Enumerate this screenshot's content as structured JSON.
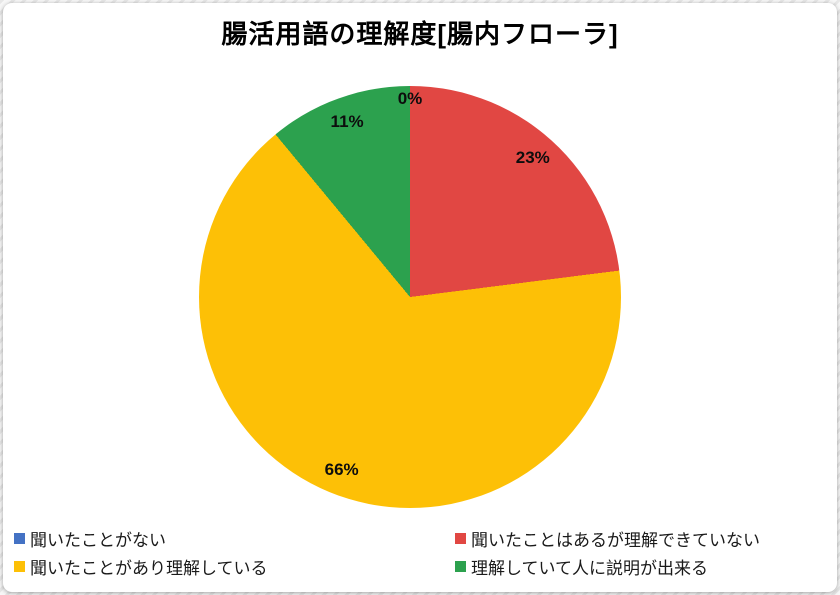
{
  "chart_data": {
    "type": "pie",
    "title": "腸活用語の理解度[腸内フローラ]",
    "labels": [
      "聞いたことがない",
      "聞いたことはあるが理解できていない",
      "聞いたことがあり理解している",
      "理解していて人に説明が出来る"
    ],
    "values": [
      0,
      23,
      66,
      11
    ],
    "value_labels": [
      "0%",
      "23%",
      "66%",
      "11%"
    ],
    "colors": [
      "#4472c4",
      "#e14743",
      "#fdc006",
      "#2ca14e"
    ],
    "start_angle_deg": 0,
    "direction": "clockwise",
    "legend_position": "bottom",
    "legend_columns": 2,
    "data_labels": "percent"
  }
}
